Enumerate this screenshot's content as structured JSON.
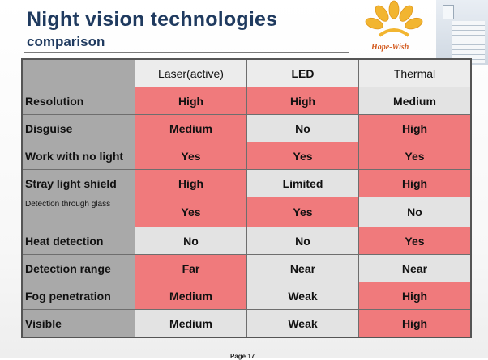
{
  "title": "Night vision technologies",
  "subtitle": "comparison",
  "logo_text": "Hope-Wish",
  "footer": "Page 17",
  "colors": {
    "highlight": "#f07a7c",
    "neutral": "#e3e3e3",
    "label_bg": "#a9a9a9",
    "title": "#1f3a5f"
  },
  "table": {
    "columns": [
      "Laser(active)",
      "LED",
      "Thermal"
    ],
    "rows": [
      {
        "label": "Resolution",
        "values": [
          "High",
          "High",
          "Medium"
        ],
        "highlight": [
          true,
          true,
          false
        ]
      },
      {
        "label": "Disguise",
        "values": [
          "Medium",
          "No",
          "High"
        ],
        "highlight": [
          true,
          false,
          true
        ]
      },
      {
        "label": "Work with no light",
        "values": [
          "Yes",
          "Yes",
          "Yes"
        ],
        "highlight": [
          true,
          true,
          true
        ]
      },
      {
        "label": "Stray light shield",
        "values": [
          "High",
          "Limited",
          "High"
        ],
        "highlight": [
          true,
          false,
          true
        ]
      },
      {
        "label": "Detection through glass",
        "values": [
          "Yes",
          "Yes",
          "No"
        ],
        "highlight": [
          true,
          true,
          false
        ]
      },
      {
        "label": "Heat detection",
        "values": [
          "No",
          "No",
          "Yes"
        ],
        "highlight": [
          false,
          false,
          true
        ]
      },
      {
        "label": "Detection range",
        "values": [
          "Far",
          "Near",
          "Near"
        ],
        "highlight": [
          true,
          false,
          false
        ]
      },
      {
        "label": "Fog penetration",
        "values": [
          "Medium",
          "Weak",
          "High"
        ],
        "highlight": [
          true,
          false,
          true
        ]
      },
      {
        "label": "Visible",
        "values": [
          "Medium",
          "Weak",
          "High"
        ],
        "highlight": [
          false,
          false,
          true
        ]
      }
    ]
  }
}
